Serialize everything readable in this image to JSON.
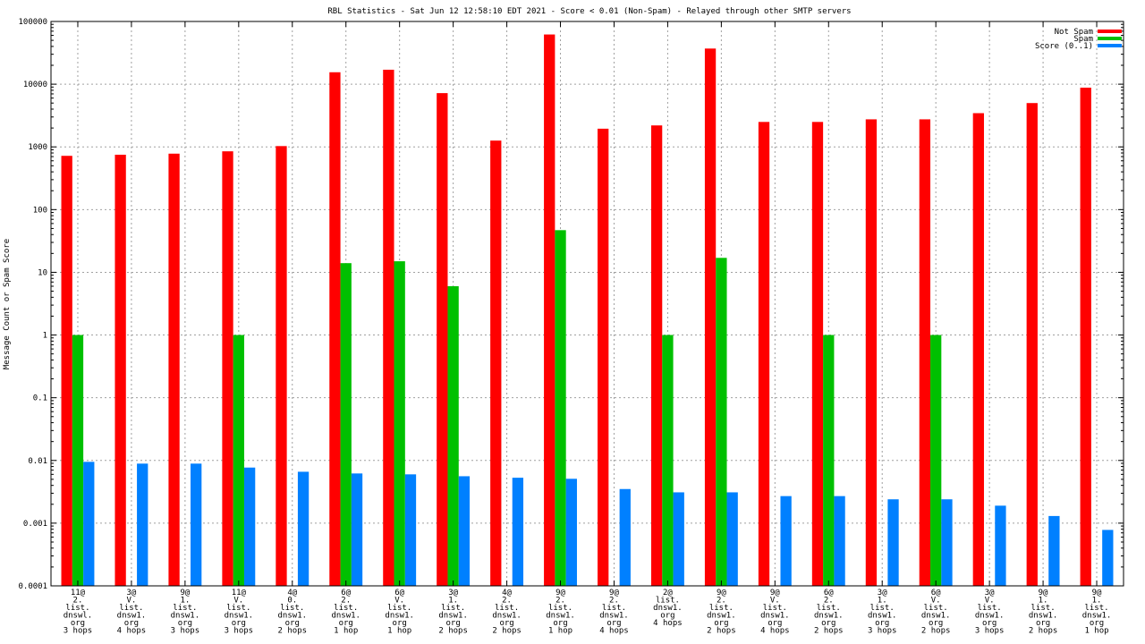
{
  "chart_data": {
    "type": "bar",
    "title": "RBL Statistics - Sat Jun 12 12:58:10 EDT 2021 - Score < 0.01 (Non-Spam) - Relayed through other SMTP servers",
    "xlabel": "",
    "ylabel": "Message Count or Spam Score",
    "yscale": "log",
    "ylim": [
      0.0001,
      100000
    ],
    "yticks": [
      "0.0001",
      "0.001",
      "0.01",
      "0.1",
      "1",
      "10",
      "100",
      "1000",
      "10000",
      "100000"
    ],
    "grid": true,
    "legend_position": "top-right",
    "categories": [
      [
        "11@",
        "2.",
        "list.",
        "dnswl.",
        "org",
        "3 hops"
      ],
      [
        "3@",
        "V.",
        "list.",
        "dnsw1.",
        "org",
        "4 hops"
      ],
      [
        "9@",
        "1.",
        "list.",
        "dnsw1.",
        "org",
        "3 hops"
      ],
      [
        "11@",
        "V.",
        "list.",
        "dnsw1.",
        "org",
        "3 hops"
      ],
      [
        "4@",
        "0.",
        "list.",
        "dnsw1.",
        "org",
        "2 hops"
      ],
      [
        "6@",
        "2.",
        "list.",
        "dnsw1.",
        "org",
        "1 hop"
      ],
      [
        "6@",
        "V.",
        "list.",
        "dnsw1.",
        "org",
        "1 hop"
      ],
      [
        "3@",
        "1.",
        "list.",
        "dnsw1.",
        "org",
        "2 hops"
      ],
      [
        "4@",
        "2.",
        "list.",
        "dnsw1.",
        "org",
        "2 hops"
      ],
      [
        "9@",
        "2.",
        "list.",
        "dnsw1.",
        "org",
        "1 hop"
      ],
      [
        "9@",
        "2.",
        "list.",
        "dnsw1.",
        "org",
        "4 hops"
      ],
      [
        "2@",
        "list.",
        "dnsw1.",
        "org",
        "4 hops"
      ],
      [
        "9@",
        "2.",
        "list.",
        "dnsw1.",
        "org",
        "2 hops"
      ],
      [
        "9@",
        "V.",
        "list.",
        "dnsw1.",
        "org",
        "4 hops"
      ],
      [
        "6@",
        "2.",
        "list.",
        "dnsw1.",
        "org",
        "2 hops"
      ],
      [
        "3@",
        "1.",
        "list.",
        "dnsw1.",
        "org",
        "3 hops"
      ],
      [
        "6@",
        "V.",
        "list.",
        "dnsw1.",
        "org",
        "2 hops"
      ],
      [
        "3@",
        "V.",
        "list.",
        "dnsw1.",
        "org",
        "3 hops"
      ],
      [
        "9@",
        "1.",
        "list.",
        "dnsw1.",
        "org",
        "2 hops"
      ],
      [
        "9@",
        "1.",
        "list.",
        "dnsw1.",
        "org",
        "1 hop"
      ]
    ],
    "series": [
      {
        "name": "Not Spam",
        "color": "#ff0000",
        "values": [
          720,
          750,
          780,
          850,
          1030,
          15500,
          17000,
          7200,
          1260,
          62000,
          1950,
          2200,
          37000,
          2500,
          2500,
          2750,
          2750,
          3450,
          5000,
          8800
        ]
      },
      {
        "name": "Spam",
        "color": "#00c000",
        "values": [
          1,
          null,
          null,
          1,
          null,
          14,
          15,
          6,
          null,
          47,
          null,
          1,
          17,
          null,
          1,
          null,
          1,
          null,
          null,
          null
        ]
      },
      {
        "name": "Score (0..1)",
        "color": "#0080ff",
        "values": [
          0.0095,
          0.0089,
          0.0089,
          0.0077,
          0.0066,
          0.0062,
          0.006,
          0.0056,
          0.0053,
          0.0051,
          0.0035,
          0.0031,
          0.0031,
          0.0027,
          0.0027,
          0.0024,
          0.0024,
          0.0019,
          0.0013,
          0.00078
        ]
      }
    ]
  }
}
